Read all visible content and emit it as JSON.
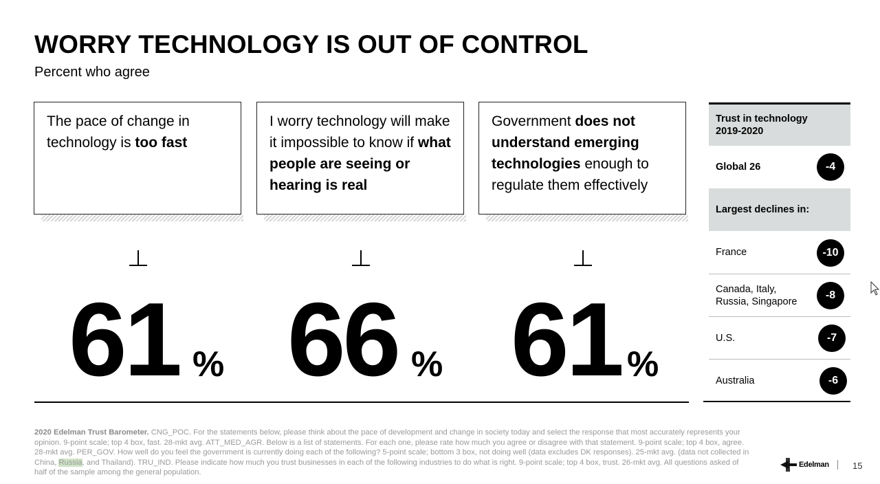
{
  "title": "WORRY TECHNOLOGY IS OUT OF CONTROL",
  "subtitle": "Percent who agree",
  "cards": [
    {
      "segments": [
        {
          "text": "The pace of change in technology is ",
          "bold": false
        },
        {
          "text": "too fast",
          "bold": true
        }
      ],
      "value": "61",
      "unit": "%"
    },
    {
      "segments": [
        {
          "text": "I worry technology will make it impossible to know if ",
          "bold": false
        },
        {
          "text": "what people are seeing or hearing is real",
          "bold": true
        }
      ],
      "value": "66",
      "unit": "%"
    },
    {
      "segments": [
        {
          "text": "Government ",
          "bold": false
        },
        {
          "text": "does not understand emerging technologies",
          "bold": true
        },
        {
          "text": " enough to regulate them effectively",
          "bold": false
        }
      ],
      "value": "61",
      "unit": "%"
    }
  ],
  "sidebar": {
    "header": "Trust in technology 2019-2020",
    "global_label": "Global 26",
    "global_value": "-4",
    "declines_header": "Largest declines in:",
    "declines": [
      {
        "label": "France",
        "value": "-10"
      },
      {
        "label": "Canada, Italy, Russia, Singapore",
        "value": "-8"
      },
      {
        "label": "U.S.",
        "value": "-7"
      },
      {
        "label": "Australia",
        "value": "-6"
      }
    ]
  },
  "footnote": {
    "bold_lead": "2020 Edelman Trust Barometer.",
    "text_before_highlight": " CNG_POC. For the statements below, please think about the pace of development and change in society today and select the response that most accurately represents your opinion. 9-point scale; top 4 box, fast. 28-mkt avg. ATT_MED_AGR. Below is a list of statements. For each one, please rate how much you agree or disagree with that statement. 9-point scale; top 4 box, agree. 28-mkt avg. PER_GOV. How well do you feel the government is currently doing each of the following? 5-point scale; bottom 3 box, not doing well (data excludes DK responses). 25-mkt avg. (data not collected in China, ",
    "highlight": "Russia",
    "text_after_highlight": ", and Thailand). TRU_IND. Please indicate how much you trust businesses in each of the following industries to do what is right. 9-point scale; top 4 box, trust. 26-mkt avg. All questions asked of half of the sample among the general population."
  },
  "logo_text": "Edelman",
  "page_number": "15",
  "colors": {
    "text": "#000000",
    "sidebar_header_bg": "#d9dcdc",
    "footnote": "#9a9a9a",
    "highlight": "#cfe3c6"
  },
  "icons": {
    "cursor": "mouse-pointer-icon",
    "logo": "edelman-logo-icon"
  }
}
